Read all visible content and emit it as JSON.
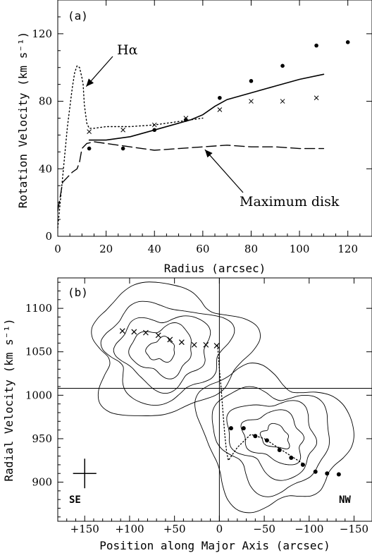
{
  "chart_data": [
    {
      "type": "line",
      "panel_label": "(a)",
      "xlabel": "Radius (arcsec)",
      "ylabel": "Rotation Velocity (km s⁻¹)",
      "xlim": [
        0,
        130
      ],
      "ylim": [
        0,
        140
      ],
      "xticks": [
        0,
        20,
        40,
        60,
        80,
        100,
        120
      ],
      "yticks": [
        0,
        40,
        80,
        120
      ],
      "annotations": [
        {
          "text": "Hα",
          "points_to": [
            10,
            90
          ]
        },
        {
          "text": "Maximum disk",
          "points_to": [
            60,
            53
          ]
        }
      ],
      "series": [
        {
          "style": "dotted",
          "x": [
            0,
            2,
            4,
            6,
            7,
            8,
            9,
            10,
            10.5,
            11,
            12,
            13,
            15,
            20,
            30,
            40,
            50,
            55,
            60
          ],
          "y": [
            5,
            35,
            65,
            88,
            97,
            101,
            100,
            94,
            90,
            78,
            67,
            64,
            64,
            65,
            65,
            66,
            68,
            69,
            70
          ]
        },
        {
          "style": "solid",
          "x": [
            13,
            20,
            30,
            40,
            50,
            55,
            60,
            65,
            70,
            80,
            90,
            100,
            110
          ],
          "y": [
            57,
            57,
            59,
            63,
            67,
            69,
            72,
            77,
            81,
            85,
            89,
            93,
            96
          ]
        },
        {
          "style": "dashed",
          "x": [
            0,
            2,
            4,
            6,
            8,
            9,
            10,
            12,
            15,
            20,
            30,
            40,
            50,
            60,
            70,
            80,
            90,
            100,
            110
          ],
          "y": [
            15,
            32,
            35,
            38,
            40,
            44,
            52,
            55,
            56,
            55,
            53,
            51,
            52,
            53,
            54,
            53,
            53,
            52,
            52
          ]
        },
        {
          "marker": "filled-circle",
          "x": [
            13,
            27,
            40,
            53,
            67,
            80,
            93,
            107,
            120
          ],
          "y": [
            52,
            52,
            63,
            69,
            82,
            92,
            101,
            113,
            115
          ]
        },
        {
          "marker": "cross",
          "x": [
            13,
            27,
            40,
            53,
            67,
            80,
            93,
            107
          ],
          "y": [
            62,
            63,
            66,
            70,
            75,
            80,
            80,
            82
          ]
        }
      ]
    },
    {
      "type": "contour",
      "panel_label": "(b)",
      "xlabel": "Position along Major Axis (arcsec)",
      "ylabel": "Radial Velocity (km s⁻¹)",
      "xlim": [
        180,
        -170
      ],
      "ylim": [
        855,
        1135
      ],
      "xticks": [
        150,
        100,
        50,
        0,
        -50,
        -100,
        -150
      ],
      "xticklabels": [
        "+150",
        "+100",
        "+50",
        "0",
        "−50",
        "−100",
        "−150"
      ],
      "yticks": [
        900,
        950,
        1000,
        1050,
        1100
      ],
      "systemic_velocity": 1008,
      "center_position": 0,
      "direction_labels": {
        "left": "SE",
        "right": "NW"
      },
      "error_bar": {
        "x": 150,
        "y": 910,
        "dx": 10,
        "dy": 17
      },
      "crosses": {
        "x": [
          108,
          95,
          82,
          68,
          55,
          42,
          28,
          15,
          3
        ],
        "y": [
          1074,
          1073,
          1072,
          1069,
          1064,
          1061,
          1058,
          1058,
          1057
        ]
      },
      "dots": {
        "x": [
          -13,
          -27,
          -40,
          -53,
          -67,
          -80,
          -93,
          -107,
          -120,
          -133
        ],
        "y": [
          962,
          962,
          953,
          948,
          937,
          928,
          920,
          912,
          910,
          909
        ]
      },
      "dotted_trace": {
        "x": [
          2,
          0,
          -2,
          -4,
          -6,
          -8,
          -10,
          -20,
          -35,
          -50,
          -65,
          -80,
          -95
        ],
        "y": [
          1058,
          1030,
          1008,
          980,
          955,
          935,
          925,
          940,
          955,
          950,
          940,
          930,
          920
        ]
      },
      "contour_levels": [
        1,
        2,
        3,
        4,
        5
      ],
      "contour_peaks": [
        {
          "x": 52,
          "y": 1052
        },
        {
          "x": -50,
          "y": 952
        }
      ]
    }
  ]
}
